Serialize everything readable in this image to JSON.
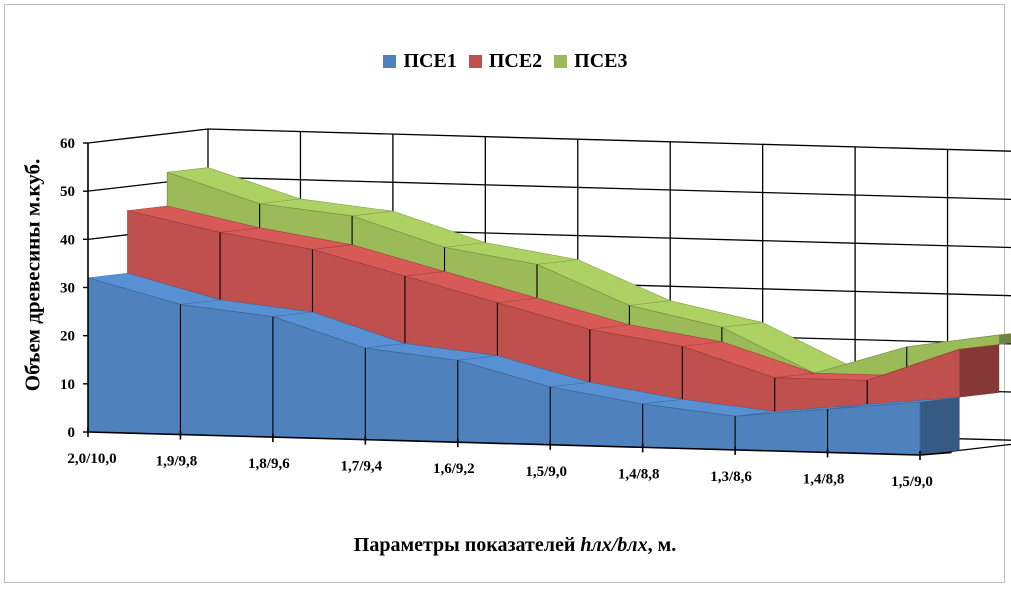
{
  "chart_data": {
    "type": "area",
    "stacked": true,
    "three_d": true,
    "categories": [
      "2,0/10,0",
      "1,9/9,8",
      "1,8/9,6",
      "1,7/9,4",
      "1,6/9,2",
      "1,5/9,0",
      "1,4/8,8",
      "1,3/8,6",
      "1,4/8,8",
      "1,5/9,0"
    ],
    "series": [
      {
        "name": "ПСЕ1",
        "color": "#4f81bd",
        "values": [
          32,
          27,
          25,
          19,
          17,
          12,
          9,
          7,
          9,
          11
        ]
      },
      {
        "name": "ПСЕ2",
        "color": "#c0504d",
        "values": [
          13,
          14,
          13,
          14,
          11,
          11,
          11,
          7,
          5,
          10
        ]
      },
      {
        "name": "ПСЕ3",
        "color": "#9bbb59",
        "values": [
          7,
          5,
          6,
          5,
          7,
          4,
          3,
          0,
          6,
          2
        ]
      }
    ],
    "xlabel_prefix": "Параметры показателей ",
    "xlabel_italic": "hлх/bлх",
    "xlabel_suffix": ", м.",
    "ylabel": "Объем древесины м.куб.",
    "ylim": [
      0,
      60
    ],
    "yticks": [
      "0",
      "10",
      "20",
      "30",
      "40",
      "50",
      "60"
    ],
    "grid": true,
    "legend_position": "top"
  }
}
